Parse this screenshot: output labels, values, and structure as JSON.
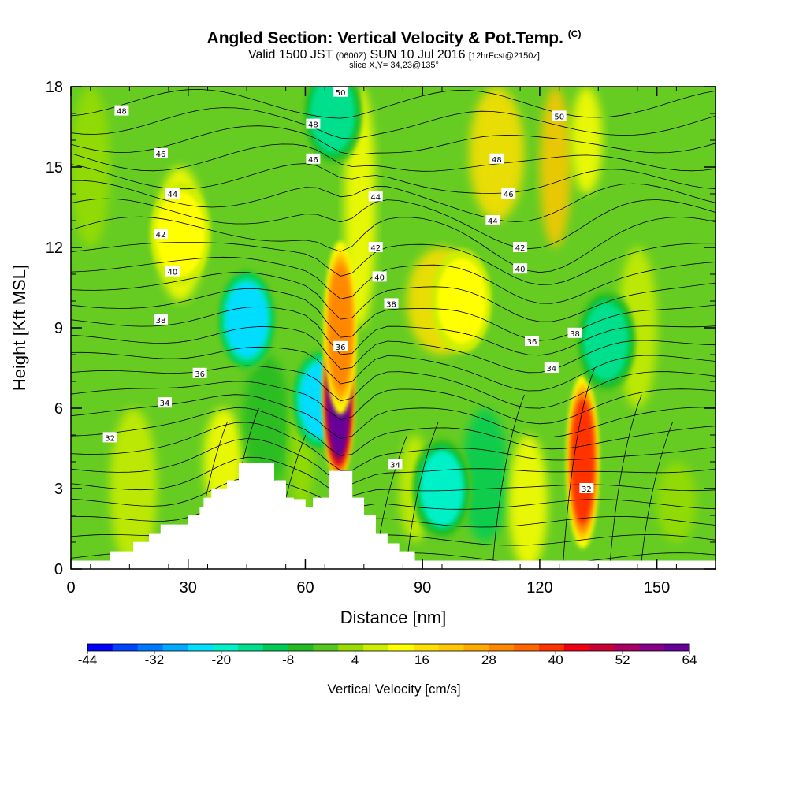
{
  "header": {
    "title": "Angled Section: Vertical Velocity & Pot.Temp.",
    "title_mark": "(C)",
    "valid_prefix": "Valid 1500 JST",
    "valid_zulu": "(0600Z)",
    "valid_date": "SUN 10 Jul 2016",
    "forecast": "[12hrFcst@2150z]",
    "slice": "slice X,Y= 34,23@135°"
  },
  "colors": {
    "background": "#ffffff",
    "terrain": "#ffffff",
    "contour": "#000000"
  },
  "chart_data": {
    "type": "heatmap",
    "title": "Angled Section: Vertical Velocity & Pot.Temp.",
    "xlabel": "Distance [nm]",
    "ylabel": "Height [Kft MSL]",
    "xlim": [
      0,
      165
    ],
    "ylim": [
      0,
      18
    ],
    "x_ticks": [
      0,
      30,
      60,
      90,
      120,
      150
    ],
    "y_ticks": [
      0,
      3,
      6,
      9,
      12,
      15,
      18
    ],
    "fill_variable": "Vertical Velocity [cm/s]",
    "contour_variable": "Pot.Temp. (C)",
    "colorbar": {
      "label": "Vertical Velocity [cm/s]",
      "tick_labels": [
        -44,
        -32,
        -20,
        -8,
        4,
        16,
        28,
        40,
        52,
        64
      ],
      "colors": [
        "#0000ff",
        "#0044ff",
        "#0077ff",
        "#00aaff",
        "#00ddff",
        "#00f0c8",
        "#00e08c",
        "#00cc55",
        "#22bb22",
        "#55c820",
        "#99dd00",
        "#ccee00",
        "#ffff00",
        "#ffe000",
        "#ffc800",
        "#ffaa00",
        "#ff8800",
        "#ff6600",
        "#ff3300",
        "#ee0011",
        "#cc0033",
        "#aa0066",
        "#880088",
        "#660099"
      ]
    },
    "velocity_features": [
      {
        "x": 45,
        "y": 9.3,
        "value": -24
      },
      {
        "x": 64,
        "y": 6.3,
        "value": -22
      },
      {
        "x": 68.5,
        "y": 6.5,
        "value": 62
      },
      {
        "x": 69,
        "y": 9.0,
        "value": 30
      },
      {
        "x": 95,
        "y": 3.0,
        "value": -18
      },
      {
        "x": 131,
        "y": 4.0,
        "value": 38
      },
      {
        "x": 137,
        "y": 8.5,
        "value": -14
      },
      {
        "x": 67,
        "y": 17.0,
        "value": -16
      },
      {
        "x": 28,
        "y": 12.5,
        "value": 12
      },
      {
        "x": 100,
        "y": 10.0,
        "value": 12
      }
    ],
    "terrain_profile": [
      [
        0,
        0.3
      ],
      [
        10,
        0.3
      ],
      [
        10,
        0.65
      ],
      [
        16,
        0.65
      ],
      [
        16,
        1.0
      ],
      [
        20,
        1.0
      ],
      [
        20,
        1.3
      ],
      [
        23,
        1.3
      ],
      [
        23,
        1.65
      ],
      [
        30,
        1.65
      ],
      [
        30,
        2.0
      ],
      [
        33,
        2.0
      ],
      [
        33,
        2.3
      ],
      [
        34,
        2.3
      ],
      [
        34,
        2.65
      ],
      [
        36,
        2.65
      ],
      [
        36,
        3.0
      ],
      [
        40,
        3.0
      ],
      [
        40,
        3.3
      ],
      [
        43,
        3.3
      ],
      [
        43,
        3.95
      ],
      [
        52,
        3.95
      ],
      [
        52,
        3.3
      ],
      [
        55,
        3.3
      ],
      [
        55,
        2.65
      ],
      [
        57,
        2.65
      ],
      [
        57,
        2.6
      ],
      [
        60,
        2.6
      ],
      [
        60,
        2.3
      ],
      [
        62,
        2.3
      ],
      [
        62,
        2.65
      ],
      [
        66,
        2.65
      ],
      [
        66,
        3.65
      ],
      [
        72,
        3.65
      ],
      [
        72,
        2.65
      ],
      [
        75,
        2.65
      ],
      [
        75,
        2.0
      ],
      [
        78,
        2.0
      ],
      [
        78,
        1.3
      ],
      [
        81,
        1.3
      ],
      [
        81,
        0.95
      ],
      [
        84,
        0.95
      ],
      [
        84,
        0.65
      ],
      [
        88,
        0.65
      ],
      [
        88,
        0.3
      ],
      [
        165,
        0.3
      ]
    ],
    "contour_labels": [
      {
        "text": "48",
        "x": 13,
        "y": 17.1
      },
      {
        "text": "46",
        "x": 23,
        "y": 15.5
      },
      {
        "text": "44",
        "x": 26,
        "y": 14.0
      },
      {
        "text": "42",
        "x": 23,
        "y": 12.5
      },
      {
        "text": "40",
        "x": 26,
        "y": 11.1
      },
      {
        "text": "38",
        "x": 23,
        "y": 9.3
      },
      {
        "text": "36",
        "x": 33,
        "y": 7.3
      },
      {
        "text": "34",
        "x": 24,
        "y": 6.2
      },
      {
        "text": "32",
        "x": 10,
        "y": 4.9
      },
      {
        "text": "50",
        "x": 69,
        "y": 17.8
      },
      {
        "text": "48",
        "x": 62,
        "y": 16.6
      },
      {
        "text": "46",
        "x": 62,
        "y": 15.3
      },
      {
        "text": "44",
        "x": 78,
        "y": 13.9
      },
      {
        "text": "42",
        "x": 78,
        "y": 12.0
      },
      {
        "text": "40",
        "x": 79,
        "y": 10.9
      },
      {
        "text": "38",
        "x": 82,
        "y": 9.9
      },
      {
        "text": "36",
        "x": 69,
        "y": 8.3
      },
      {
        "text": "34",
        "x": 83,
        "y": 3.9
      },
      {
        "text": "50",
        "x": 125,
        "y": 16.9
      },
      {
        "text": "48",
        "x": 109,
        "y": 15.3
      },
      {
        "text": "46",
        "x": 112,
        "y": 14.0
      },
      {
        "text": "44",
        "x": 108,
        "y": 13.0
      },
      {
        "text": "42",
        "x": 115,
        "y": 12.0
      },
      {
        "text": "40",
        "x": 115,
        "y": 11.2
      },
      {
        "text": "38",
        "x": 129,
        "y": 8.8
      },
      {
        "text": "36",
        "x": 118,
        "y": 8.5
      },
      {
        "text": "34",
        "x": 123,
        "y": 7.5
      },
      {
        "text": "32",
        "x": 132,
        "y": 3.0
      }
    ]
  }
}
